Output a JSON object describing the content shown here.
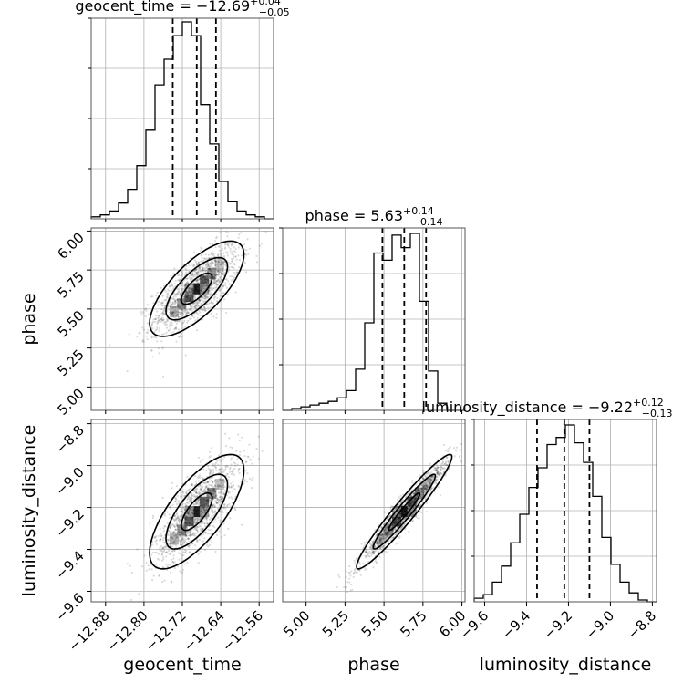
{
  "chart_data": {
    "type": "corner",
    "parameters": [
      {
        "key": "geocent_time",
        "label": "geocent_time",
        "median": -12.69,
        "plus": "0.04",
        "minus": "0.05",
        "q": [
          -12.74,
          -12.69,
          -12.65
        ],
        "range": [
          -12.91,
          -12.53
        ]
      },
      {
        "key": "phase",
        "label": "phase",
        "median": 5.63,
        "plus": "0.14",
        "minus": "0.14",
        "q": [
          5.49,
          5.63,
          5.77
        ],
        "range": [
          4.85,
          6.02
        ]
      },
      {
        "key": "luminosity_distance",
        "label": "luminosity_distance",
        "median": -9.22,
        "plus": "0.12",
        "minus": "0.13",
        "q": [
          -9.35,
          -9.22,
          -9.1
        ],
        "range": [
          -9.65,
          -8.78
        ]
      }
    ],
    "titles": [
      {
        "name": "geocent_time",
        "eq": " = −12.69",
        "sup": "+0.04",
        "sub": "−0.05"
      },
      {
        "name": "phase",
        "eq": " = 5.63",
        "sup": "+0.14",
        "sub": "−0.14"
      },
      {
        "name": "luminosity_distance",
        "eq": " = −9.22",
        "sup": "+0.12",
        "sub": "−0.13"
      }
    ],
    "ticks": {
      "geocent_time": [
        {
          "v": -12.88,
          "t": "−12.88"
        },
        {
          "v": -12.8,
          "t": "−12.80"
        },
        {
          "v": -12.72,
          "t": "−12.72"
        },
        {
          "v": -12.64,
          "t": "−12.64"
        },
        {
          "v": -12.56,
          "t": "−12.56"
        }
      ],
      "phase": [
        {
          "v": 5.0,
          "t": "5.00"
        },
        {
          "v": 5.25,
          "t": "5.25"
        },
        {
          "v": 5.5,
          "t": "5.50"
        },
        {
          "v": 5.75,
          "t": "5.75"
        },
        {
          "v": 6.0,
          "t": "6.00"
        }
      ],
      "luminosity_distance": [
        {
          "v": -9.6,
          "t": "−9.6"
        },
        {
          "v": -9.4,
          "t": "−9.4"
        },
        {
          "v": -9.2,
          "t": "−9.2"
        },
        {
          "v": -9.0,
          "t": "−9.0"
        },
        {
          "v": -8.8,
          "t": "−8.8"
        }
      ]
    },
    "histograms": {
      "geocent_time": [
        0.01,
        0.02,
        0.04,
        0.08,
        0.15,
        0.27,
        0.45,
        0.68,
        0.81,
        0.93,
        1.0,
        0.93,
        0.58,
        0.38,
        0.19,
        0.09,
        0.04,
        0.02,
        0.01,
        0.0
      ],
      "phase": [
        0.0,
        0.01,
        0.02,
        0.03,
        0.04,
        0.05,
        0.07,
        0.11,
        0.23,
        0.49,
        0.88,
        0.84,
        0.98,
        0.91,
        0.99,
        0.61,
        0.22,
        0.04,
        0.0,
        0.0
      ],
      "luminosity_distance": [
        0.02,
        0.04,
        0.11,
        0.2,
        0.33,
        0.49,
        0.64,
        0.75,
        0.88,
        0.92,
        0.99,
        0.89,
        0.78,
        0.59,
        0.36,
        0.21,
        0.11,
        0.05,
        0.01,
        0.0
      ]
    },
    "pairs": [
      {
        "x": "geocent_time",
        "y": "phase",
        "corr": 0.72
      },
      {
        "x": "geocent_time",
        "y": "luminosity_distance",
        "corr": 0.72
      },
      {
        "x": "phase",
        "y": "luminosity_distance",
        "corr": 0.96
      }
    ],
    "grid": true,
    "quantile_lines": "dashed"
  }
}
